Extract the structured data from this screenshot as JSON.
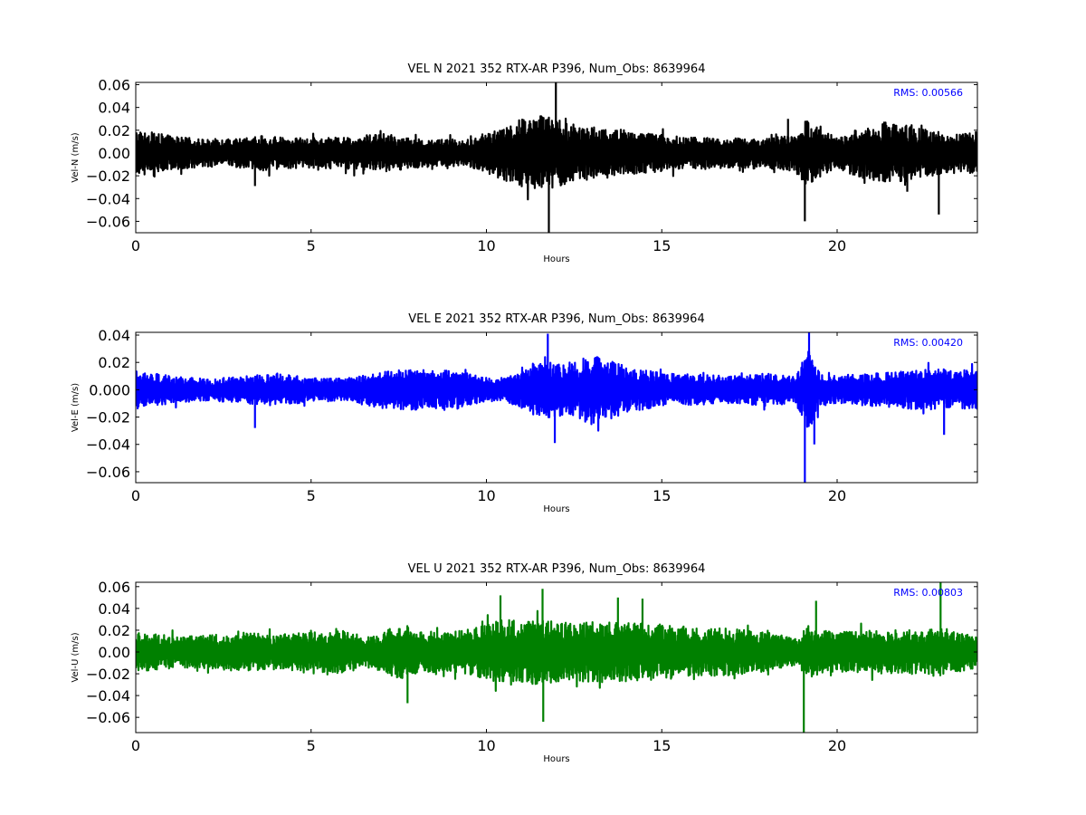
{
  "chart_data": [
    {
      "type": "line",
      "title": "VEL N 2021 352 RTX-AR  P396, Num_Obs: 8639964",
      "xlabel": "Hours",
      "ylabel": "Vel-N (m/s)",
      "xlim": [
        0,
        24
      ],
      "ylim": [
        -0.07,
        0.062
      ],
      "x_ticks": [
        0,
        5,
        10,
        15,
        20
      ],
      "x_tick_labels": [
        "0",
        "5",
        "10",
        "15",
        "20"
      ],
      "y_ticks": [
        -0.06,
        -0.04,
        -0.02,
        0.0,
        0.02,
        0.04,
        0.06
      ],
      "y_tick_labels": [
        "−0.06",
        "−0.04",
        "−0.02",
        "0.00",
        "0.02",
        "0.04",
        "0.06"
      ],
      "grid": false,
      "rms_label": "RMS:  0.00566",
      "line_color": "#000000",
      "annotation_color": "#0000ff",
      "envelope": {
        "x": [
          0,
          0.5,
          1,
          2,
          3,
          3.5,
          4,
          5,
          6,
          7,
          8,
          9,
          9.5,
          10,
          10.5,
          11,
          11.5,
          12,
          12.5,
          13,
          13.5,
          14,
          15,
          16,
          17,
          18,
          18.8,
          19.1,
          19.5,
          20,
          20.5,
          21,
          21.5,
          22,
          22.5,
          23,
          23.5,
          24
        ],
        "upper": [
          0.02,
          0.018,
          0.015,
          0.012,
          0.013,
          0.015,
          0.014,
          0.013,
          0.014,
          0.017,
          0.013,
          0.012,
          0.012,
          0.018,
          0.022,
          0.03,
          0.035,
          0.03,
          0.025,
          0.022,
          0.022,
          0.02,
          0.016,
          0.014,
          0.013,
          0.014,
          0.016,
          0.03,
          0.022,
          0.013,
          0.02,
          0.025,
          0.028,
          0.025,
          0.022,
          0.018,
          0.016,
          0.02
        ],
        "lower": [
          -0.02,
          -0.018,
          -0.015,
          -0.012,
          -0.013,
          -0.016,
          -0.014,
          -0.013,
          -0.014,
          -0.017,
          -0.013,
          -0.012,
          -0.012,
          -0.018,
          -0.024,
          -0.03,
          -0.035,
          -0.03,
          -0.025,
          -0.022,
          -0.022,
          -0.02,
          -0.016,
          -0.014,
          -0.013,
          -0.014,
          -0.016,
          -0.03,
          -0.022,
          -0.013,
          -0.02,
          -0.025,
          -0.028,
          -0.025,
          -0.022,
          -0.018,
          -0.016,
          -0.02
        ]
      },
      "spikes": [
        {
          "x": 3.4,
          "y": -0.029
        },
        {
          "x": 11.78,
          "y": -0.07
        },
        {
          "x": 11.98,
          "y": 0.062
        },
        {
          "x": 19.08,
          "y": -0.06
        },
        {
          "x": 22.9,
          "y": -0.054
        },
        {
          "x": 22.0,
          "y": -0.034
        },
        {
          "x": 18.6,
          "y": 0.03
        }
      ]
    },
    {
      "type": "line",
      "title": "VEL E 2021 352 RTX-AR  P396, Num_Obs: 8639964",
      "xlabel": "Hours",
      "ylabel": "Vel-E (m/s)",
      "xlim": [
        0,
        24
      ],
      "ylim": [
        -0.068,
        0.042
      ],
      "x_ticks": [
        0,
        5,
        10,
        15,
        20
      ],
      "x_tick_labels": [
        "0",
        "5",
        "10",
        "15",
        "20"
      ],
      "y_ticks": [
        -0.06,
        -0.04,
        -0.02,
        0.0,
        0.02,
        0.04
      ],
      "y_tick_labels": [
        "−0.06",
        "−0.04",
        "−0.02",
        "0.000",
        "0.02",
        "0.04"
      ],
      "grid": false,
      "rms_label": "RMS:  0.00420",
      "line_color": "#0000ff",
      "annotation_color": "#0000ff",
      "envelope": {
        "x": [
          0,
          0.5,
          1,
          2,
          3,
          4,
          5,
          6,
          7,
          8,
          9,
          10,
          10.5,
          11,
          11.5,
          12,
          12.5,
          13,
          13.5,
          14,
          15,
          16,
          17,
          18,
          18.8,
          19.2,
          19.5,
          20,
          20.5,
          21,
          22,
          23,
          24
        ],
        "upper": [
          0.014,
          0.012,
          0.01,
          0.008,
          0.01,
          0.012,
          0.009,
          0.008,
          0.014,
          0.015,
          0.014,
          0.009,
          0.008,
          0.014,
          0.022,
          0.02,
          0.02,
          0.026,
          0.022,
          0.017,
          0.012,
          0.011,
          0.01,
          0.012,
          0.01,
          0.03,
          0.012,
          0.01,
          0.011,
          0.012,
          0.014,
          0.015,
          0.014
        ],
        "lower": [
          -0.014,
          -0.012,
          -0.01,
          -0.008,
          -0.01,
          -0.012,
          -0.009,
          -0.008,
          -0.014,
          -0.015,
          -0.014,
          -0.009,
          -0.008,
          -0.014,
          -0.022,
          -0.02,
          -0.02,
          -0.026,
          -0.022,
          -0.017,
          -0.012,
          -0.011,
          -0.01,
          -0.012,
          -0.01,
          -0.03,
          -0.012,
          -0.01,
          -0.011,
          -0.012,
          -0.014,
          -0.015,
          -0.014
        ]
      },
      "spikes": [
        {
          "x": 3.4,
          "y": -0.028
        },
        {
          "x": 11.75,
          "y": 0.041
        },
        {
          "x": 11.95,
          "y": -0.039
        },
        {
          "x": 19.08,
          "y": -0.068
        },
        {
          "x": 19.2,
          "y": 0.042
        },
        {
          "x": 19.35,
          "y": -0.04
        },
        {
          "x": 23.05,
          "y": -0.033
        }
      ]
    },
    {
      "type": "line",
      "title": "VEL U 2021 352 RTX-AR  P396, Num_Obs: 8639964",
      "xlabel": "Hours",
      "ylabel": "Vel-U (m/s)",
      "xlim": [
        0,
        24
      ],
      "ylim": [
        -0.074,
        0.064
      ],
      "x_ticks": [
        0,
        5,
        10,
        15,
        20
      ],
      "x_tick_labels": [
        "0",
        "5",
        "10",
        "15",
        "20"
      ],
      "y_ticks": [
        -0.06,
        -0.04,
        -0.02,
        0.0,
        0.02,
        0.04,
        0.06
      ],
      "y_tick_labels": [
        "−0.06",
        "−0.04",
        "−0.02",
        "0.00",
        "0.02",
        "0.04",
        "0.06"
      ],
      "grid": false,
      "rms_label": "RMS:  0.00803",
      "line_color": "#008000",
      "annotation_color": "#0000ff",
      "envelope": {
        "x": [
          0,
          1,
          2,
          3,
          4,
          5,
          6,
          6.5,
          7,
          7.5,
          8,
          9,
          10,
          10.5,
          11,
          11.5,
          12,
          12.5,
          13,
          14,
          15,
          16,
          17,
          18,
          18.9,
          19.1,
          19.5,
          20,
          21,
          22,
          23,
          24
        ],
        "upper": [
          0.018,
          0.015,
          0.015,
          0.018,
          0.016,
          0.018,
          0.02,
          0.013,
          0.018,
          0.025,
          0.02,
          0.018,
          0.025,
          0.03,
          0.028,
          0.03,
          0.028,
          0.026,
          0.028,
          0.027,
          0.026,
          0.022,
          0.022,
          0.018,
          0.012,
          0.025,
          0.02,
          0.018,
          0.02,
          0.02,
          0.022,
          0.015
        ],
        "lower": [
          -0.018,
          -0.015,
          -0.015,
          -0.018,
          -0.016,
          -0.018,
          -0.02,
          -0.013,
          -0.018,
          -0.025,
          -0.02,
          -0.018,
          -0.025,
          -0.03,
          -0.03,
          -0.03,
          -0.028,
          -0.026,
          -0.028,
          -0.027,
          -0.026,
          -0.022,
          -0.022,
          -0.018,
          -0.012,
          -0.025,
          -0.02,
          -0.018,
          -0.02,
          -0.02,
          -0.022,
          -0.015
        ]
      },
      "spikes": [
        {
          "x": 7.75,
          "y": -0.047
        },
        {
          "x": 10.4,
          "y": 0.052
        },
        {
          "x": 11.6,
          "y": 0.058
        },
        {
          "x": 11.62,
          "y": -0.064
        },
        {
          "x": 19.05,
          "y": -0.074
        },
        {
          "x": 19.4,
          "y": 0.047
        },
        {
          "x": 22.95,
          "y": 0.064
        },
        {
          "x": 13.75,
          "y": 0.05
        },
        {
          "x": 14.45,
          "y": 0.049
        }
      ]
    }
  ]
}
